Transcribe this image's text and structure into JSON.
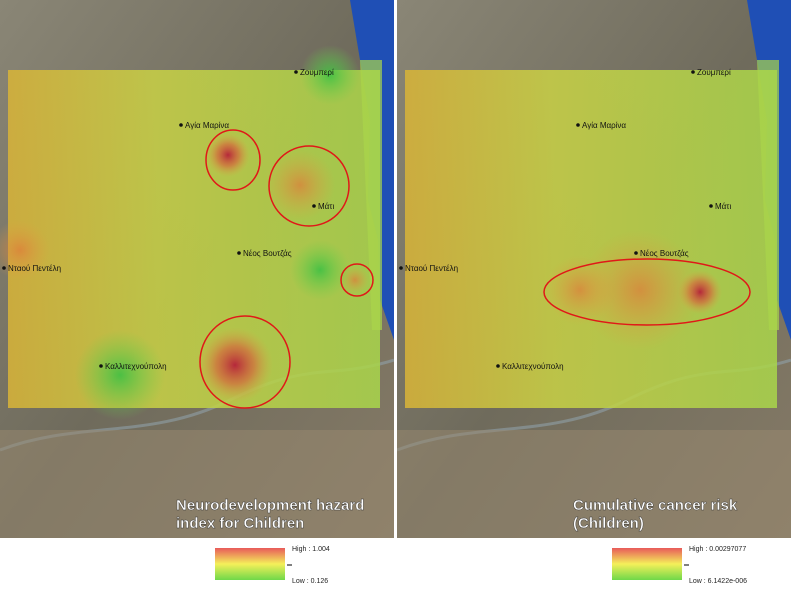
{
  "panels": [
    {
      "title_lines": [
        "Neurodevelopment hazard",
        "index for Children"
      ],
      "places": [
        "Ζουμπερί",
        "Αγία Μαρίνα",
        "Μάτι",
        "Νέος Βουτζάς",
        "Νταού Πεντέλη",
        "Καλλιτεχνούπολη"
      ],
      "legend": {
        "high": "High : 1.004",
        "low": "Low : 0.126"
      }
    },
    {
      "title_lines": [
        "Cumulative cancer risk",
        "(Children)"
      ],
      "places": [
        "Ζουμπερί",
        "Αγία Μαρίνα",
        "Μάτι",
        "Νέος Βουτζάς",
        "Νταού Πεντέλη",
        "Καλλιτεχνούπολη"
      ],
      "legend": {
        "high": "High : 0.00297077",
        "low": "Low : 6.1422e-006"
      }
    }
  ]
}
